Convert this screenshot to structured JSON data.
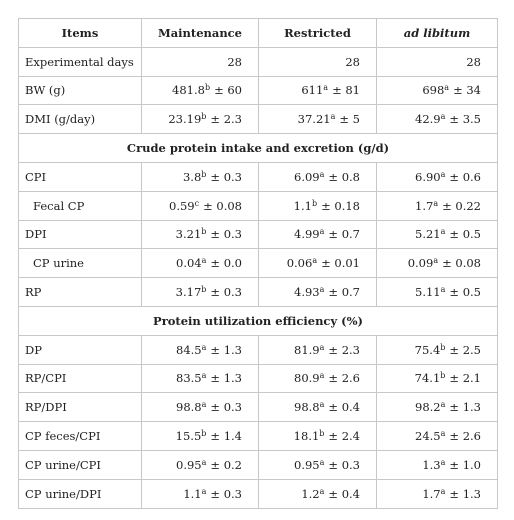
{
  "table": {
    "header": [
      "Items",
      "Maintenance",
      "Restricted",
      "ad libitum"
    ],
    "rows": [
      {
        "item": "Experimental days",
        "cells": [
          {
            "v": "28"
          },
          {
            "v": "28"
          },
          {
            "v": "28"
          }
        ]
      },
      {
        "item": "BW (g)",
        "cells": [
          {
            "v": "481.8",
            "s": "b",
            "e": "± 60"
          },
          {
            "v": "611",
            "s": "a",
            "e": "± 81"
          },
          {
            "v": "698",
            "s": "a",
            "e": "± 34"
          }
        ]
      },
      {
        "item": "DMI (g/day)",
        "cells": [
          {
            "v": "23.19",
            "s": "b",
            "e": "± 2.3"
          },
          {
            "v": "37.21",
            "s": "a",
            "e": "± 5"
          },
          {
            "v": "42.9",
            "s": "a",
            "e": "± 3.5"
          }
        ]
      },
      {
        "section": "Crude protein intake and excretion (g/d)"
      },
      {
        "item": "CPI",
        "cells": [
          {
            "v": "3.8",
            "s": "b",
            "e": "± 0.3"
          },
          {
            "v": "6.09",
            "s": "a",
            "e": "± 0.8"
          },
          {
            "v": "6.90",
            "s": "a",
            "e": "± 0.6"
          }
        ]
      },
      {
        "item": "Fecal CP",
        "indent": true,
        "cells": [
          {
            "v": "0.59",
            "s": "c",
            "e": "± 0.08"
          },
          {
            "v": "1.1",
            "s": "b",
            "e": "± 0.18"
          },
          {
            "v": "1.7",
            "s": "a",
            "e": "± 0.22"
          }
        ]
      },
      {
        "item": "DPI",
        "cells": [
          {
            "v": "3.21",
            "s": "b",
            "e": "± 0.3"
          },
          {
            "v": "4.99",
            "s": "a",
            "e": "± 0.7"
          },
          {
            "v": "5.21",
            "s": "a",
            "e": "± 0.5"
          }
        ]
      },
      {
        "item": "CP urine",
        "indent": true,
        "cells": [
          {
            "v": "0.04",
            "s": "a",
            "e": "± 0.0"
          },
          {
            "v": "0.06",
            "s": "a",
            "e": "± 0.01"
          },
          {
            "v": "0.09",
            "s": "a",
            "e": "± 0.08"
          }
        ]
      },
      {
        "item": "RP",
        "cells": [
          {
            "v": "3.17",
            "s": "b",
            "e": "± 0.3"
          },
          {
            "v": "4.93",
            "s": "a",
            "e": "± 0.7"
          },
          {
            "v": "5.11",
            "s": "a",
            "e": "± 0.5"
          }
        ]
      },
      {
        "section": "Protein utilization efficiency (%)"
      },
      {
        "item": "DP",
        "cells": [
          {
            "v": "84.5",
            "s": "a",
            "e": "± 1.3"
          },
          {
            "v": "81.9",
            "s": "a",
            "e": "± 2.3"
          },
          {
            "v": "75.4",
            "s": "b",
            "e": "± 2.5"
          }
        ]
      },
      {
        "item": "RP/CPI",
        "cells": [
          {
            "v": "83.5",
            "s": "a",
            "e": "± 1.3"
          },
          {
            "v": "80.9",
            "s": "a",
            "e": "± 2.6"
          },
          {
            "v": "74.1",
            "s": "b",
            "e": "± 2.1"
          }
        ]
      },
      {
        "item": "RP/DPI",
        "cells": [
          {
            "v": "98.8",
            "s": "a",
            "e": "± 0.3"
          },
          {
            "v": "98.8",
            "s": "a",
            "e": "± 0.4"
          },
          {
            "v": "98.2",
            "s": "a",
            "e": "± 1.3"
          }
        ]
      },
      {
        "item": "CP feces/CPI",
        "cells": [
          {
            "v": "15.5",
            "s": "b",
            "e": "± 1.4"
          },
          {
            "v": "18.1",
            "s": "b",
            "e": "± 2.4"
          },
          {
            "v": "24.5",
            "s": "a",
            "e": "± 2.6"
          }
        ]
      },
      {
        "item": "CP urine/CPI",
        "cells": [
          {
            "v": "0.95",
            "s": "a",
            "e": "± 0.2"
          },
          {
            "v": "0.95",
            "s": "a",
            "e": "± 0.3"
          },
          {
            "v": "1.3",
            "s": "a",
            "e": "± 1.0"
          }
        ]
      },
      {
        "item": "CP urine/DPI",
        "cells": [
          {
            "v": "1.1",
            "s": "a",
            "e": "± 0.3"
          },
          {
            "v": "1.2",
            "s": "a",
            "e": "± 0.4"
          },
          {
            "v": "1.7",
            "s": "a",
            "e": "± 1.3"
          }
        ]
      }
    ]
  }
}
